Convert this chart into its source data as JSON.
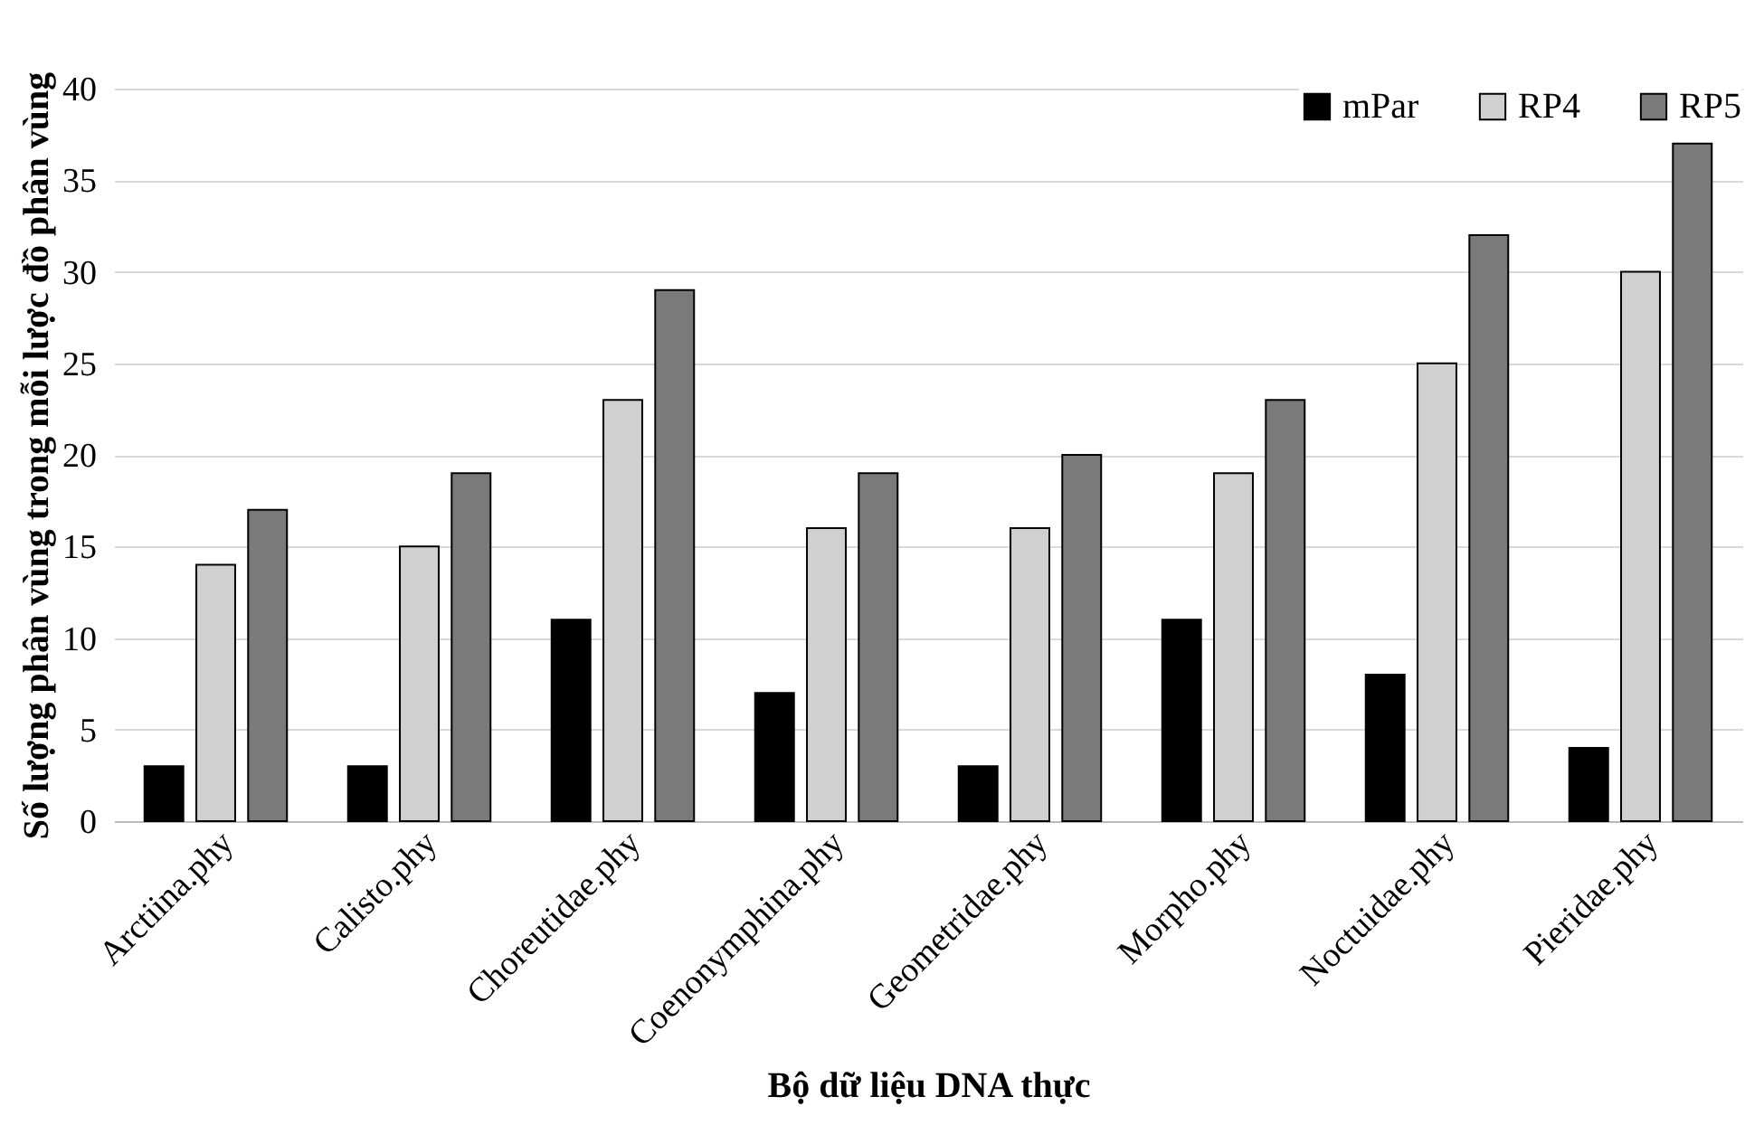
{
  "chart_data": {
    "type": "bar",
    "xlabel": "Bộ dữ liệu DNA thực",
    "ylabel": "Số lượng phân vùng trong mỗi lược đồ phân vùng",
    "categories": [
      "Arctiina.phy",
      "Calisto.phy",
      "Choreutidae.phy",
      "Coenonymphina.phy",
      "Geometridae.phy",
      "Morpho.phy",
      "Noctuidae.phy",
      "Pieridae.phy"
    ],
    "series": [
      {
        "name": "mPar",
        "color": "#000000",
        "values": [
          3,
          3,
          11,
          7,
          3,
          11,
          8,
          4
        ]
      },
      {
        "name": "RP4",
        "color": "#d0d0d0",
        "values": [
          14,
          15,
          23,
          16,
          16,
          19,
          25,
          30
        ]
      },
      {
        "name": "RP5",
        "color": "#7a7a7a",
        "values": [
          17,
          19,
          29,
          19,
          20,
          23,
          32,
          37
        ]
      }
    ],
    "ylim": [
      0,
      40
    ],
    "yticks": [
      0,
      5,
      10,
      15,
      20,
      25,
      30,
      35,
      40
    ],
    "grid": "y",
    "legend": "top right"
  }
}
